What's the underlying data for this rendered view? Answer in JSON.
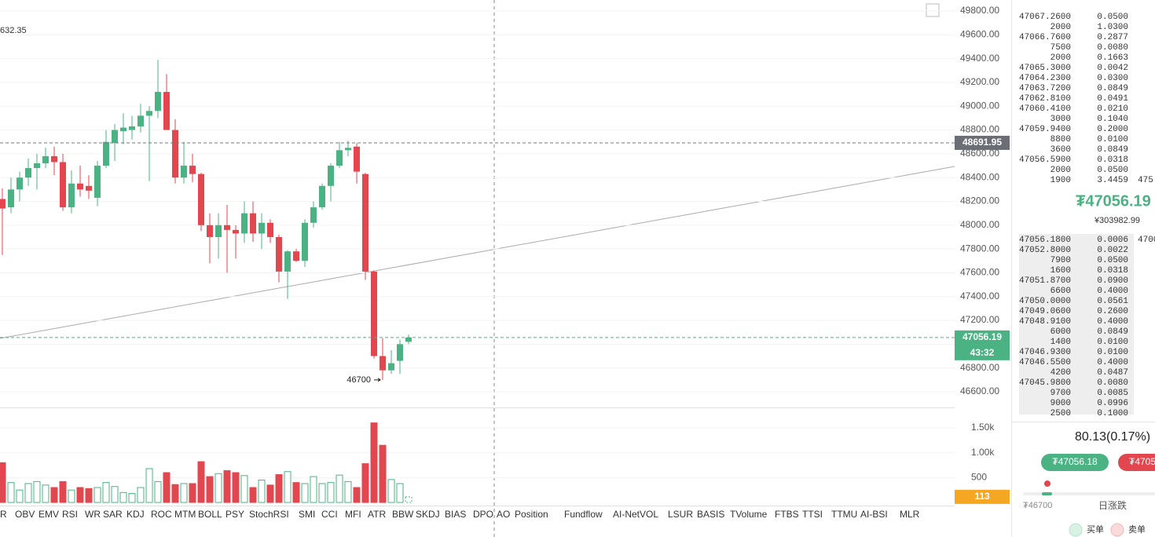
{
  "chart_data": {
    "type": "candlestick",
    "top_left_value": "632.35",
    "open": [
      48220,
      48150,
      48300,
      48400,
      48480,
      48520,
      48580,
      48530,
      48150,
      48350,
      48330,
      48230,
      48500,
      48690,
      48790,
      48800,
      48830,
      48920,
      48960,
      49120,
      48800,
      48400,
      48500,
      48430,
      48000,
      47900,
      48000,
      47960,
      47930,
      48100,
      47930,
      48020,
      47900,
      47610,
      47780,
      47700,
      48020,
      48150,
      48330,
      48500,
      48630,
      48660,
      48430,
      47610,
      46900,
      46780,
      46860,
      47020
    ],
    "high": [
      48310,
      48400,
      48450,
      48560,
      48600,
      48650,
      48660,
      48600,
      48460,
      48500,
      48420,
      48540,
      48800,
      48850,
      48940,
      48920,
      49020,
      49000,
      49390,
      49270,
      48890,
      48700,
      48600,
      48440,
      48100,
      48100,
      48170,
      48000,
      48200,
      48200,
      48100,
      48050,
      47920,
      47790,
      47800,
      48050,
      48200,
      48350,
      48520,
      48700,
      48710,
      48690,
      48440,
      47620,
      47050,
      46950,
      47040,
      47080
    ],
    "low": [
      47750,
      48100,
      48200,
      48330,
      48300,
      48480,
      48420,
      48120,
      48100,
      48240,
      48220,
      48160,
      48480,
      48540,
      48680,
      48720,
      48780,
      48370,
      48900,
      48800,
      48350,
      48350,
      48360,
      47950,
      47680,
      47720,
      47600,
      47720,
      47850,
      47860,
      47800,
      47850,
      47520,
      47380,
      47690,
      47650,
      47980,
      48130,
      48200,
      48480,
      48580,
      48350,
      47540,
      46880,
      46700,
      46750,
      46750,
      47000
    ],
    "close": [
      48140,
      48300,
      48400,
      48480,
      48520,
      48580,
      48530,
      48150,
      48350,
      48300,
      48290,
      48500,
      48700,
      48800,
      48820,
      48830,
      48920,
      48960,
      49120,
      48800,
      48400,
      48500,
      48430,
      48000,
      47900,
      48000,
      47960,
      47930,
      48100,
      47930,
      48020,
      47900,
      47610,
      47780,
      47700,
      48020,
      48150,
      48330,
      48500,
      48630,
      48650,
      48450,
      47610,
      46900,
      46780,
      46840,
      47000,
      47056.19
    ],
    "volume": [
      800,
      400,
      250,
      380,
      420,
      350,
      300,
      420,
      250,
      300,
      280,
      300,
      400,
      320,
      200,
      180,
      300,
      680,
      420,
      600,
      360,
      380,
      380,
      820,
      520,
      580,
      640,
      600,
      540,
      300,
      450,
      350,
      560,
      620,
      400,
      380,
      520,
      380,
      400,
      550,
      420,
      300,
      780,
      1600,
      1150,
      460,
      380,
      113
    ],
    "up_color": "#4bb383",
    "down_color": "#e2474f",
    "ylim": [
      46600,
      49800
    ],
    "yticks": [
      {
        "value": 46600,
        "label": "46600.00"
      },
      {
        "value": 46800,
        "label": "46800.00"
      },
      {
        "value": 47000,
        "label": "47000.00"
      },
      {
        "value": 47200,
        "label": "47200.00"
      },
      {
        "value": 47400,
        "label": "47400.00"
      },
      {
        "value": 47600,
        "label": "47600.00"
      },
      {
        "value": 47800,
        "label": "47800.00"
      },
      {
        "value": 48000,
        "label": "48000.00"
      },
      {
        "value": 48200,
        "label": "48200.00"
      },
      {
        "value": 48400,
        "label": "48400.00"
      },
      {
        "value": 48600,
        "label": "48600.00"
      },
      {
        "value": 48800,
        "label": "48800.00"
      },
      {
        "value": 49000,
        "label": "49000.00"
      },
      {
        "value": 49200,
        "label": "49200.00"
      },
      {
        "value": 49400,
        "label": "49400.00"
      },
      {
        "value": 49600,
        "label": "49600.00"
      },
      {
        "value": 49800,
        "label": "49800.00"
      }
    ],
    "vlim": [
      0,
      1500
    ],
    "vticks": [
      500,
      {
        "value": 1000,
        "label": "1.00k"
      },
      {
        "value": 1500,
        "label": "1.50k"
      }
    ],
    "ref_line": 48691.95,
    "countdown": "43:32",
    "low_marker": 46700,
    "grid": true
  },
  "indicators": [
    "VR",
    "OBV",
    "EMV",
    "RSI",
    "WR",
    "SAR",
    "KDJ",
    "ROC",
    "MTM",
    "BOLL",
    "PSY",
    "StochRSI",
    "SMI",
    "CCI",
    "MFI",
    "ATR",
    "BBW",
    "SKDJ",
    "BIAS",
    "DPO",
    "AO",
    "Position",
    "Fundflow",
    "AI-NetVOL",
    "LSUR",
    "BASIS",
    "TVolume",
    "FTBS",
    "TTSI",
    "TTMU",
    "AI-BSI",
    "MLR"
  ],
  "order_book": {
    "asks": [
      [
        "47067.2600",
        "0.0500"
      ],
      [
        "2000",
        "1.0300"
      ],
      [
        "47066.7600",
        "0.2877"
      ],
      [
        "7500",
        "0.0080"
      ],
      [
        "2000",
        "0.1663"
      ],
      [
        "47065.3000",
        "0.0042"
      ],
      [
        "47064.2300",
        "0.0300"
      ],
      [
        "47063.7200",
        "0.0849"
      ],
      [
        "47062.8100",
        "0.0491"
      ],
      [
        "47060.4100",
        "0.0210"
      ],
      [
        "3000",
        "0.1040"
      ],
      [
        "47059.9400",
        "0.2000"
      ],
      [
        "8800",
        "0.0100"
      ],
      [
        "3600",
        "0.0849"
      ],
      [
        "47056.5900",
        "0.0318"
      ],
      [
        "2000",
        "0.0500"
      ],
      [
        "1900",
        "3.4459"
      ]
    ],
    "ask_clipped": "475",
    "last_price": "₮47056.19",
    "last_price_cny": "¥303982.99",
    "bids": [
      [
        "47056.1800",
        "0.0006"
      ],
      [
        "47052.8000",
        "0.0022"
      ],
      [
        "7900",
        "0.0500"
      ],
      [
        "1600",
        "0.0318"
      ],
      [
        "47051.8700",
        "0.0900"
      ],
      [
        "6600",
        "0.4000"
      ],
      [
        "47050.0000",
        "0.0561"
      ],
      [
        "47049.0600",
        "0.2600"
      ],
      [
        "47048.9100",
        "0.4000"
      ],
      [
        "6000",
        "0.0849"
      ],
      [
        "1400",
        "0.0100"
      ],
      [
        "47046.9300",
        "0.0100"
      ],
      [
        "47046.5500",
        "0.4000"
      ],
      [
        "4200",
        "0.0487"
      ],
      [
        "47045.9800",
        "0.0080"
      ],
      [
        "9700",
        "0.0085"
      ],
      [
        "9000",
        "0.0996"
      ],
      [
        "2500",
        "0.1000"
      ]
    ],
    "bid_clipped": "4700"
  },
  "summary": {
    "change": "80.13(0.17%)",
    "buy_button": "₮47056.18",
    "sell_button": "₮4705",
    "low_label": "₮46700",
    "range_label": "日涨跌",
    "buy_legend": "买单",
    "sell_legend": "卖单"
  }
}
